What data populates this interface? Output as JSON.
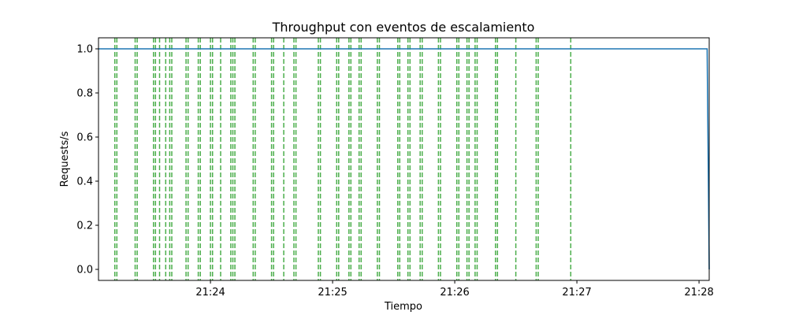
{
  "chart_data": {
    "type": "line",
    "title": "Throughput con eventos de escalamiento",
    "xlabel": "Tiempo",
    "ylabel": "Requests/s",
    "x_range": [
      "21:23:05",
      "21:28:05"
    ],
    "ylim": [
      -0.05,
      1.05
    ],
    "x_ticks": [
      "21:24",
      "21:25",
      "21:26",
      "21:27",
      "21:28"
    ],
    "y_ticks": [
      "0.0",
      "0.2",
      "0.4",
      "0.6",
      "0.8",
      "1.0"
    ],
    "grid": false,
    "series": [
      {
        "values": [
          {
            "x": "21:23:05",
            "y": 1.0
          },
          {
            "x": "21:28:04",
            "y": 1.0
          },
          {
            "x": "21:28:05",
            "y": 0.0
          }
        ],
        "color": "#1f77b4"
      }
    ],
    "event_lines": {
      "color": "#2ca02c",
      "style": "dashed",
      "times": [
        "21:23:13",
        "21:23:14",
        "21:23:23",
        "21:23:24",
        "21:23:32",
        "21:23:33",
        "21:23:35",
        "21:23:38",
        "21:23:40",
        "21:23:41",
        "21:23:48",
        "21:23:49",
        "21:23:54",
        "21:23:55",
        "21:24:00",
        "21:24:01",
        "21:24:05",
        "21:24:10",
        "21:24:11",
        "21:24:12",
        "21:24:21",
        "21:24:22",
        "21:24:30",
        "21:24:31",
        "21:24:36",
        "21:24:41",
        "21:24:42",
        "21:24:53",
        "21:24:54",
        "21:25:02",
        "21:25:03",
        "21:25:08",
        "21:25:09",
        "21:25:13",
        "21:25:14",
        "21:25:22",
        "21:25:23",
        "21:25:32",
        "21:25:33",
        "21:25:37",
        "21:25:38",
        "21:25:43",
        "21:25:44",
        "21:25:52",
        "21:25:53",
        "21:26:01",
        "21:26:02",
        "21:26:06",
        "21:26:07",
        "21:26:10",
        "21:26:11",
        "21:26:20",
        "21:26:21",
        "21:26:30",
        "21:26:40",
        "21:26:41",
        "21:26:57"
      ]
    }
  }
}
